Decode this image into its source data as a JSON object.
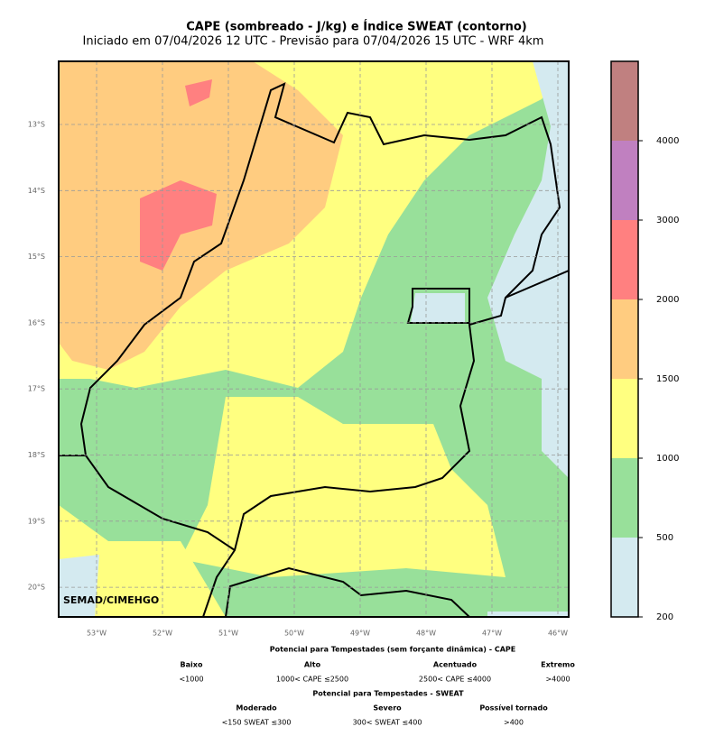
{
  "title": "CAPE (sombreado - J/kg) e Índice SWEAT (contorno)",
  "subtitle": "Iniciado em 07/04/2026 12 UTC - Previsão para 07/04/2026 15 UTC - WRF 4km",
  "map": {
    "lat_labels": [
      "13°S",
      "14°S",
      "15°S",
      "16°S",
      "17°S",
      "18°S",
      "19°S",
      "20°S"
    ],
    "lon_labels": [
      "53°W",
      "52°W",
      "51°W",
      "50°W",
      "49°W",
      "48°W",
      "47°W",
      "46°W"
    ],
    "credit": "SEMAD/CIMEHGO"
  },
  "colorbar": {
    "ticks": [
      200,
      500,
      1000,
      1500,
      2000,
      3000,
      4000
    ],
    "colors": [
      "#d4eaf0",
      "#98e09a",
      "#ffff80",
      "#ffcc80",
      "#ff8080",
      "#c080c0",
      "#c08080"
    ]
  },
  "legend": {
    "cape_title": "Potencial para Tempestades (sem forçante dinâmica) - CAPE",
    "cape_items": [
      {
        "label": "Baixo",
        "range": "<1000"
      },
      {
        "label": "Alto",
        "range": "1000< CAPE ≤2500"
      },
      {
        "label": "Acentuado",
        "range": "2500< CAPE ≤4000"
      },
      {
        "label": "Extremo",
        "range": ">4000"
      }
    ],
    "sweat_title": "Potencial para Tempestades - SWEAT",
    "sweat_items": [
      {
        "label": "Moderado",
        "range": "<150 SWEAT ≤300"
      },
      {
        "label": "Severo",
        "range": "300< SWEAT ≤400"
      },
      {
        "label": "Possível tornado",
        "range": ">400"
      }
    ]
  }
}
